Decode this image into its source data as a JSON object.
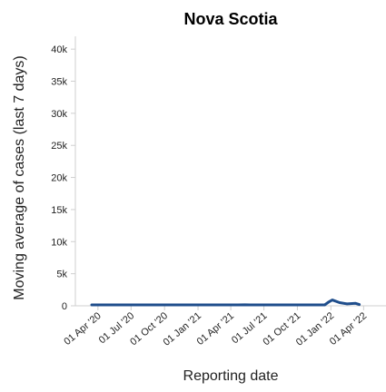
{
  "chart_data": {
    "type": "line",
    "title": "Nova Scotia",
    "xlabel": "Reporting date",
    "ylabel": "Moving average of cases (last 7 days)",
    "xlim": [
      "2020-01-30",
      "2022-05-20"
    ],
    "ylim": [
      0,
      42000
    ],
    "x_ticks": [
      {
        "date": "2020-04-01",
        "label": "01 Apr '20"
      },
      {
        "date": "2020-07-01",
        "label": "01 Jul '20"
      },
      {
        "date": "2020-10-01",
        "label": "01 Oct '20"
      },
      {
        "date": "2021-01-01",
        "label": "01 Jan '21"
      },
      {
        "date": "2021-04-01",
        "label": "01 Apr '21"
      },
      {
        "date": "2021-07-01",
        "label": "01 Jul '21"
      },
      {
        "date": "2021-10-01",
        "label": "01 Oct '21"
      },
      {
        "date": "2022-01-01",
        "label": "01 Jan '22"
      },
      {
        "date": "2022-04-01",
        "label": "01 Apr '22"
      }
    ],
    "y_ticks": [
      {
        "value": 0,
        "label": "0"
      },
      {
        "value": 5000,
        "label": "5k"
      },
      {
        "value": 10000,
        "label": "10k"
      },
      {
        "value": 15000,
        "label": "15k"
      },
      {
        "value": 20000,
        "label": "20k"
      },
      {
        "value": 25000,
        "label": "25k"
      },
      {
        "value": 30000,
        "label": "30k"
      },
      {
        "value": 35000,
        "label": "35k"
      },
      {
        "value": 40000,
        "label": "40k"
      }
    ],
    "grid": false,
    "series": [
      {
        "color": "#1f4e8c",
        "points": [
          {
            "x": "2020-03-15",
            "y": 0
          },
          {
            "x": "2020-04-10",
            "y": 35
          },
          {
            "x": "2020-04-25",
            "y": 30
          },
          {
            "x": "2020-05-20",
            "y": 5
          },
          {
            "x": "2020-07-01",
            "y": 0
          },
          {
            "x": "2020-10-01",
            "y": 1
          },
          {
            "x": "2020-11-25",
            "y": 20
          },
          {
            "x": "2021-01-01",
            "y": 3
          },
          {
            "x": "2021-03-01",
            "y": 2
          },
          {
            "x": "2021-04-20",
            "y": 40
          },
          {
            "x": "2021-05-10",
            "y": 150
          },
          {
            "x": "2021-05-25",
            "y": 60
          },
          {
            "x": "2021-06-15",
            "y": 5
          },
          {
            "x": "2021-08-01",
            "y": 5
          },
          {
            "x": "2021-09-25",
            "y": 40
          },
          {
            "x": "2021-10-20",
            "y": 35
          },
          {
            "x": "2021-12-01",
            "y": 20
          },
          {
            "x": "2021-12-15",
            "y": 100
          },
          {
            "x": "2021-12-25",
            "y": 550
          },
          {
            "x": "2022-01-05",
            "y": 900
          },
          {
            "x": "2022-01-10",
            "y": 800
          },
          {
            "x": "2022-01-25",
            "y": 500
          },
          {
            "x": "2022-02-15",
            "y": 300
          },
          {
            "x": "2022-03-10",
            "y": 380
          },
          {
            "x": "2022-03-20",
            "y": 200
          }
        ]
      }
    ]
  }
}
